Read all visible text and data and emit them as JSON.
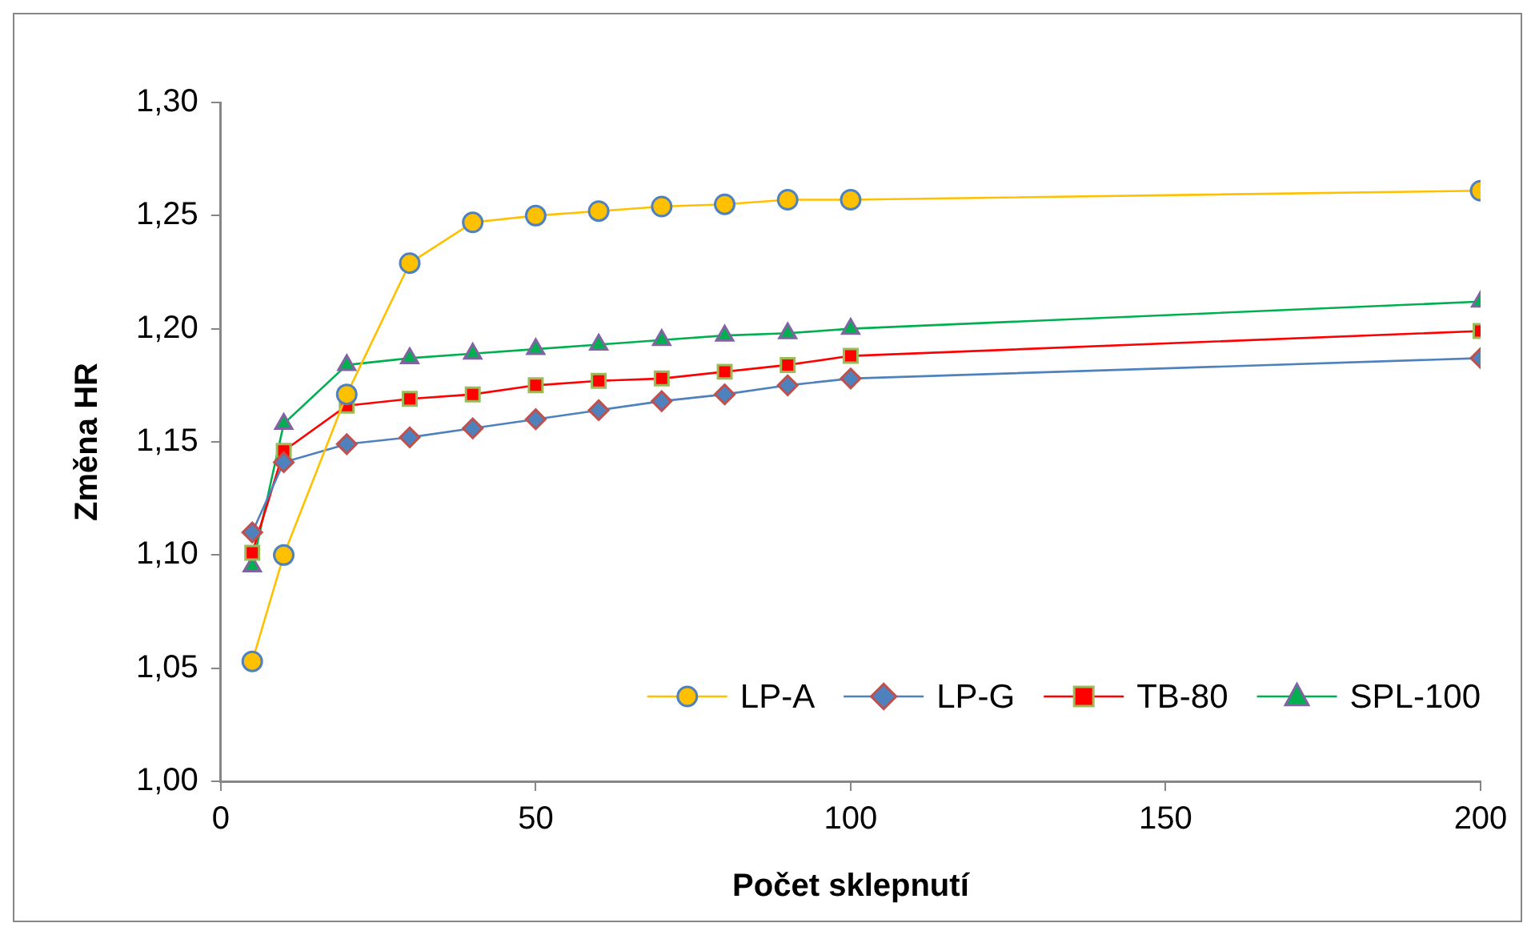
{
  "chart_data": {
    "type": "line",
    "xlabel": "Počet sklepnutí",
    "ylabel": "Změna HR",
    "x": [
      5,
      10,
      20,
      30,
      40,
      50,
      60,
      70,
      80,
      90,
      100,
      200
    ],
    "series": [
      {
        "name": "LP-A",
        "color": "#ffc000",
        "marker": "circle",
        "values": [
          1.053,
          1.1,
          1.171,
          1.229,
          1.247,
          1.25,
          1.252,
          1.254,
          1.255,
          1.257,
          1.257,
          1.261
        ]
      },
      {
        "name": "LP-G",
        "color": "#4f81bd",
        "marker": "diamond",
        "values": [
          1.11,
          1.141,
          1.149,
          1.152,
          1.156,
          1.16,
          1.164,
          1.168,
          1.171,
          1.175,
          1.178,
          1.187
        ]
      },
      {
        "name": "TB-80",
        "color": "#ff0000",
        "marker": "square",
        "values": [
          1.101,
          1.146,
          1.166,
          1.169,
          1.171,
          1.175,
          1.177,
          1.178,
          1.181,
          1.184,
          1.188,
          1.199
        ]
      },
      {
        "name": "SPL-100",
        "color": "#00b050",
        "marker": "triangle",
        "values": [
          1.095,
          1.158,
          1.184,
          1.187,
          1.189,
          1.191,
          1.193,
          1.195,
          1.197,
          1.198,
          1.2,
          1.212
        ]
      }
    ],
    "xlim": [
      0,
      200
    ],
    "xticks": [
      0,
      50,
      100,
      150,
      200
    ],
    "ylim": [
      1.0,
      1.3
    ],
    "yticks": [
      {
        "value": 1.0,
        "label": "1,00"
      },
      {
        "value": 1.05,
        "label": "1,05"
      },
      {
        "value": 1.1,
        "label": "1,10"
      },
      {
        "value": 1.15,
        "label": "1,15"
      },
      {
        "value": 1.2,
        "label": "1,20"
      },
      {
        "value": 1.25,
        "label": "1,25"
      },
      {
        "value": 1.3,
        "label": "1,30"
      }
    ],
    "grid": false,
    "legend": "bottom right"
  }
}
